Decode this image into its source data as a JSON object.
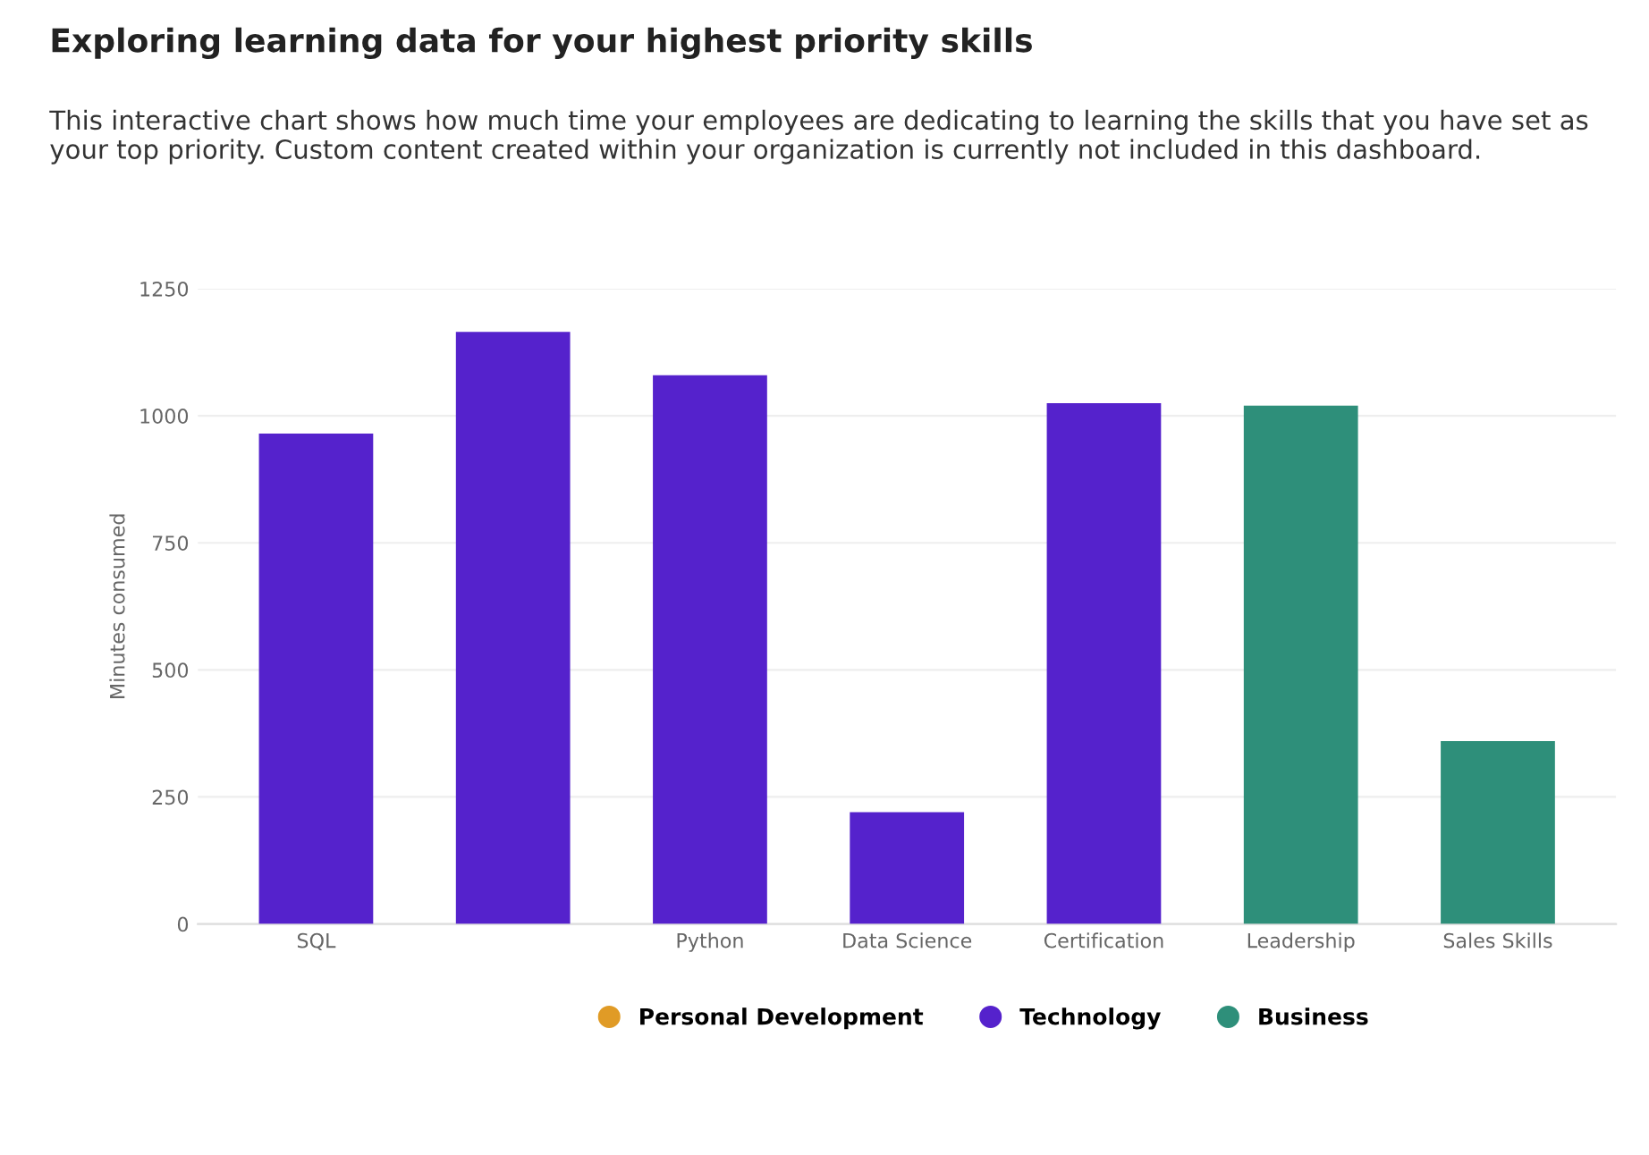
{
  "chart_data": {
    "type": "bar",
    "title": "Exploring learning data for your highest priority skills",
    "subtitle": "This interactive chart shows how much time your employees are dedicating to learning the skills that you have set as your top priority. Custom content created within your organization is currently not included in this dashboard.",
    "ylabel": "Minutes consumed",
    "categories": [
      "SQL",
      null,
      "Python",
      "Data Science",
      "Certification",
      "Leadership",
      "Sales Skills"
    ],
    "series": [
      {
        "name": "Personal Development",
        "color": "#e09b26",
        "values": [
          null,
          null,
          null,
          null,
          null,
          null,
          null
        ]
      },
      {
        "name": "Technology",
        "color": "#5522cc",
        "values": [
          965,
          1165,
          1080,
          220,
          1025,
          null,
          null
        ]
      },
      {
        "name": "Business",
        "color": "#2e8f7a",
        "values": [
          null,
          null,
          null,
          null,
          null,
          1020,
          360
        ]
      }
    ],
    "ylim": [
      0,
      1250
    ],
    "yticks": [
      0,
      250,
      500,
      750,
      1000,
      1250
    ],
    "grid": "y",
    "legend": "bottom"
  }
}
